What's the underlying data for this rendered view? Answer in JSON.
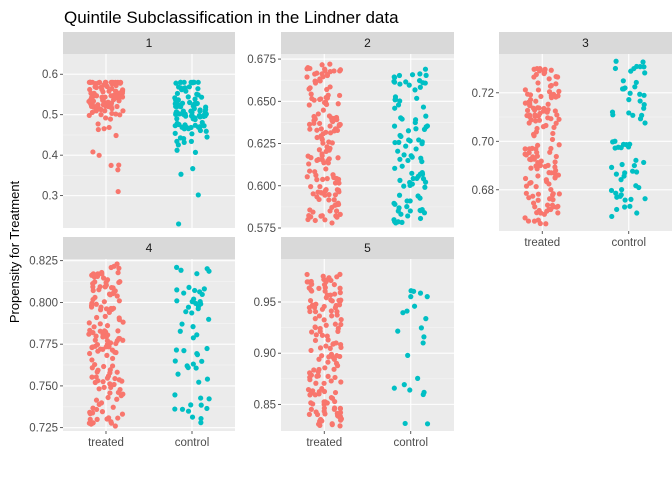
{
  "chart_data": {
    "type": "scatter",
    "subtype": "faceted jittered strip plot",
    "title": "Quintile Subclassification in the Lindner data",
    "ylabel": "Propensity for Treatment",
    "xlabel": "",
    "categories": [
      "treated",
      "control"
    ],
    "series_colors": {
      "treated": "#F8766D",
      "control": "#00BFC4"
    },
    "panel_background": "#EBEBEB",
    "strip_background": "#D9D9D9",
    "grid": true,
    "legend": "none",
    "facets": [
      {
        "label": "1",
        "ylim": [
          0.22,
          0.65
        ],
        "yticks": [
          "0.3",
          "0.4",
          "0.5",
          "0.6"
        ],
        "tickvals": [
          0.3,
          0.4,
          0.5,
          0.6
        ],
        "show_x_labels": false,
        "treated": {
          "n": 110,
          "min": 0.31,
          "max": 0.58,
          "center": 0.545,
          "spread": 0.03,
          "tail": 0.18
        },
        "control": {
          "n": 100,
          "min": 0.23,
          "max": 0.58,
          "center": 0.51,
          "spread": 0.045,
          "tail": 0.08
        }
      },
      {
        "label": "2",
        "ylim": [
          0.575,
          0.678
        ],
        "yticks": [
          "0.575",
          "0.600",
          "0.625",
          "0.650",
          "0.675"
        ],
        "tickvals": [
          0.575,
          0.6,
          0.625,
          0.65,
          0.675
        ],
        "show_x_labels": false,
        "treated": {
          "n": 150,
          "min": 0.578,
          "max": 0.672,
          "center": null
        },
        "control": {
          "n": 95,
          "min": 0.578,
          "max": 0.669,
          "center": null
        }
      },
      {
        "label": "3",
        "ylim": [
          0.663,
          0.736
        ],
        "yticks": [
          "0.68",
          "0.70",
          "0.72"
        ],
        "tickvals": [
          0.68,
          0.7,
          0.72
        ],
        "show_x_labels": true,
        "treated": {
          "n": 150,
          "min": 0.666,
          "max": 0.73,
          "center": null
        },
        "control": {
          "n": 65,
          "min": 0.669,
          "max": 0.733,
          "center": null
        }
      },
      {
        "label": "4",
        "ylim": [
          0.723,
          0.826
        ],
        "yticks": [
          "0.725",
          "0.750",
          "0.775",
          "0.800",
          "0.825"
        ],
        "tickvals": [
          0.725,
          0.75,
          0.775,
          0.8,
          0.825
        ],
        "show_x_labels": true,
        "treated": {
          "n": 150,
          "min": 0.726,
          "max": 0.823,
          "center": null
        },
        "control": {
          "n": 55,
          "min": 0.728,
          "max": 0.821,
          "center": null
        }
      },
      {
        "label": "5",
        "ylim": [
          0.824,
          0.992
        ],
        "yticks": [
          "0.85",
          "0.90",
          "0.95"
        ],
        "tickvals": [
          0.85,
          0.9,
          0.95
        ],
        "show_x_labels": true,
        "treated": {
          "n": 150,
          "min": 0.829,
          "max": 0.977,
          "center": null
        },
        "control": {
          "n": 22,
          "min": 0.831,
          "max": 0.961,
          "center": null
        }
      }
    ]
  }
}
